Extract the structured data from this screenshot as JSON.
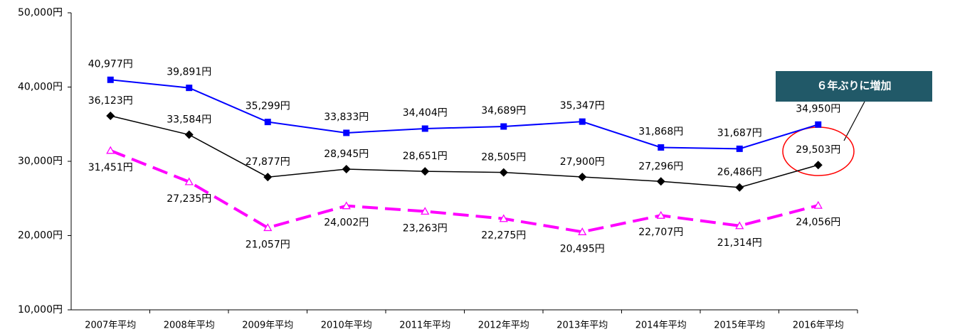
{
  "chart_data": {
    "type": "line",
    "categories": [
      "2007年平均",
      "2008年平均",
      "2009年平均",
      "2010年平均",
      "2011年平均",
      "2012年平均",
      "2013年平均",
      "2014年平均",
      "2015年平均",
      "2016年平均"
    ],
    "series": [
      {
        "color": "#0000ff",
        "marker": "square",
        "values": [
          40977,
          39891,
          35299,
          33833,
          34404,
          34689,
          35347,
          31868,
          31687,
          34950
        ],
        "value_labels": [
          "40,977円",
          "39,891円",
          "35,299円",
          "33,833円",
          "34,404円",
          "34,689円",
          "35,347円",
          "31,868円",
          "31,687円",
          "34,950円"
        ]
      },
      {
        "color": "#000000",
        "marker": "diamond",
        "values": [
          36123,
          33584,
          27877,
          28945,
          28651,
          28505,
          27900,
          27296,
          26486,
          29503
        ],
        "value_labels": [
          "36,123円",
          "33,584円",
          "27,877円",
          "28,945円",
          "28,651円",
          "28,505円",
          "27,900円",
          "27,296円",
          "26,486円",
          "29,503円"
        ]
      },
      {
        "color": "#ff00ff",
        "marker": "triangle",
        "dashed": true,
        "values": [
          31451,
          27235,
          21057,
          24002,
          23263,
          22275,
          20495,
          22707,
          21314,
          24056
        ],
        "value_labels": [
          "31,451円",
          "27,235円",
          "21,057円",
          "24,002円",
          "23,263円",
          "22,275円",
          "20,495円",
          "22,707円",
          "21,314円",
          "24,056円"
        ]
      }
    ],
    "ylim": [
      10000,
      50000
    ],
    "yticks": [
      {
        "value": 10000,
        "label": "10,000円"
      },
      {
        "value": 20000,
        "label": "20,000円"
      },
      {
        "value": 30000,
        "label": "30,000円"
      },
      {
        "value": 40000,
        "label": "40,000円"
      },
      {
        "value": 50000,
        "label": "50,000円"
      }
    ],
    "annotation": "６年ぶりに増加"
  }
}
